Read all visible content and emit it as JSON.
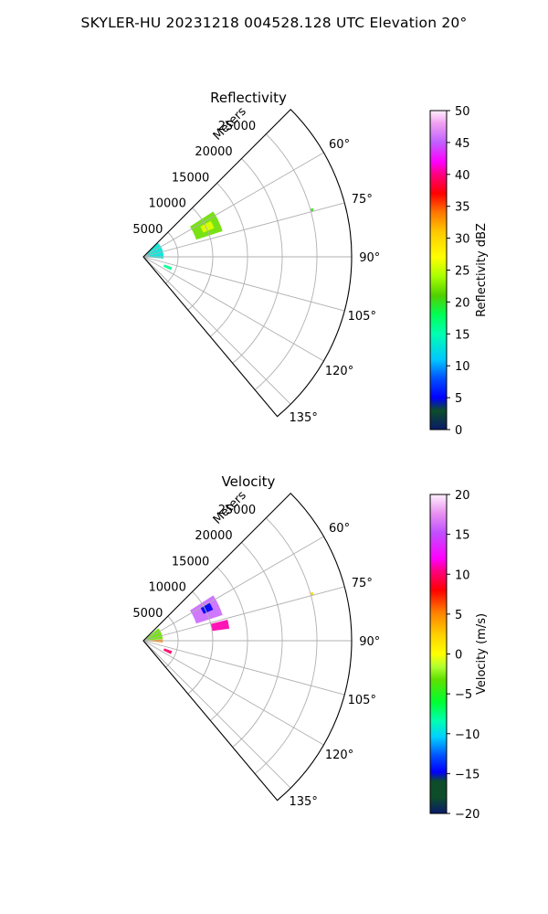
{
  "figure": {
    "title": "SKYLER-HU  20231218  004528.128 UTC Elevation 20°"
  },
  "chart_data": [
    {
      "type": "heatmap",
      "projection": "polar-sector",
      "title": "Reflectivity",
      "range_axis_label": "Meters",
      "range_ticks": [
        5000,
        10000,
        15000,
        20000,
        25000
      ],
      "range_tick_labels": [
        "5000",
        "10000",
        "15000",
        "20000",
        "25000"
      ],
      "range_lim": [
        0,
        30000
      ],
      "azimuth_ticks": [
        60,
        75,
        90,
        105,
        120,
        135
      ],
      "azimuth_tick_labels": [
        "60°",
        "75°",
        "90°",
        "105°",
        "120°",
        "135°"
      ],
      "azimuth_lim": [
        45,
        140
      ],
      "grid": true,
      "colorbar": {
        "label": "Reflectivity dBZ",
        "min": 0,
        "max": 50,
        "ticks": [
          0,
          5,
          10,
          15,
          20,
          25,
          30,
          35,
          40,
          45,
          50
        ],
        "tick_labels": [
          "0",
          "5",
          "10",
          "15",
          "20",
          "25",
          "30",
          "35",
          "40",
          "45",
          "50"
        ]
      },
      "echoes": [
        {
          "az_min": 57,
          "az_max": 72,
          "r_min": 8000,
          "r_max": 12000,
          "value": 22
        },
        {
          "az_min": 62,
          "az_max": 68,
          "r_min": 9300,
          "r_max": 11000,
          "value": 26
        },
        {
          "az_min": 45,
          "az_max": 95,
          "r_min": 500,
          "r_max": 2900,
          "value": 13
        },
        {
          "az_min": 110,
          "az_max": 116,
          "r_min": 3200,
          "r_max": 4400,
          "value": 16
        },
        {
          "az_min": 74,
          "az_max": 75,
          "r_min": 25000,
          "r_max": 25400,
          "value": 20
        }
      ]
    },
    {
      "type": "heatmap",
      "projection": "polar-sector",
      "title": "Velocity",
      "range_axis_label": "Meters",
      "range_ticks": [
        5000,
        10000,
        15000,
        20000,
        25000
      ],
      "range_tick_labels": [
        "5000",
        "10000",
        "15000",
        "20000",
        "25000"
      ],
      "range_lim": [
        0,
        30000
      ],
      "azimuth_ticks": [
        60,
        75,
        90,
        105,
        120,
        135
      ],
      "azimuth_tick_labels": [
        "60°",
        "75°",
        "90°",
        "105°",
        "120°",
        "135°"
      ],
      "azimuth_lim": [
        45,
        140
      ],
      "grid": true,
      "colorbar": {
        "label": "Velocity (m/s)",
        "min": -20,
        "max": 20,
        "ticks": [
          -20,
          -15,
          -10,
          -5,
          0,
          5,
          10,
          15,
          20
        ],
        "tick_labels": [
          "−20",
          "−15",
          "−10",
          "−5",
          "0",
          "5",
          "10",
          "15",
          "20"
        ]
      },
      "echoes": [
        {
          "az_min": 57,
          "az_max": 72,
          "r_min": 8000,
          "r_max": 12000,
          "value": 16
        },
        {
          "az_min": 60,
          "az_max": 66,
          "r_min": 9500,
          "r_max": 11000,
          "value": -15
        },
        {
          "az_min": 76,
          "az_max": 82,
          "r_min": 10000,
          "r_max": 12500,
          "value": 11
        },
        {
          "az_min": 50,
          "az_max": 85,
          "r_min": 500,
          "r_max": 2800,
          "value": -3
        },
        {
          "az_min": 86,
          "az_max": 95,
          "r_min": 500,
          "r_max": 2800,
          "value": 5
        },
        {
          "az_min": 110,
          "az_max": 116,
          "r_min": 3200,
          "r_max": 4400,
          "value": 10
        },
        {
          "az_min": 74,
          "az_max": 75,
          "r_min": 25000,
          "r_max": 25400,
          "value": 2
        }
      ]
    }
  ]
}
